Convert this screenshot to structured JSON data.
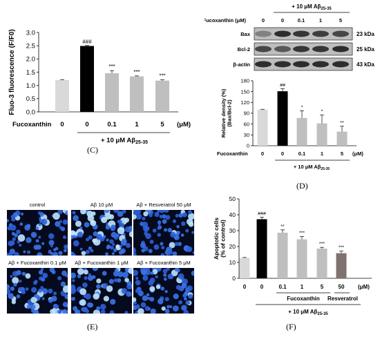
{
  "panels": {
    "C": {
      "label": "(C)",
      "chart_data": {
        "type": "bar",
        "ylabel": "Fluo-3 fluorescence (F/F0)",
        "ylim": [
          0,
          3.0
        ],
        "yticks": [
          "0.0",
          "0.5",
          "1.0",
          "1.5",
          "2.0",
          "2.5",
          "3.0"
        ],
        "categories": [
          "0",
          "0",
          "0.1",
          "1",
          "5"
        ],
        "values": [
          1.2,
          2.49,
          1.46,
          1.34,
          1.18
        ],
        "errors": [
          0.02,
          0.02,
          0.1,
          0.02,
          0.03
        ],
        "annotations": [
          "",
          "###",
          "***",
          "***",
          "***"
        ],
        "colors": [
          "#d9d9d9",
          "#000000",
          "#bfbfbf",
          "#bfbfbf",
          "#bfbfbf"
        ],
        "row_label": "Fucoxanthin",
        "unit": "(μM)",
        "treatment": {
          "prefix": "+ 10 μM Aβ",
          "sub": "25-35"
        }
      }
    },
    "D": {
      "label": "(D)",
      "blot": {
        "row_label": "Fucoxanthin (μM)",
        "columns": [
          "0",
          "0",
          "0.1",
          "1",
          "5"
        ],
        "treatment": {
          "prefix": "+ 10 μM Aβ",
          "sub": "25-35"
        },
        "bands": [
          {
            "name": "Bax",
            "size": "23 kDa"
          },
          {
            "name": "Bcl-2",
            "size": "25 kDa"
          },
          {
            "name": "β-actin",
            "size": "43 kDa"
          }
        ]
      },
      "chart_data": {
        "type": "bar",
        "ylabel_line1": "Relative density (%)",
        "ylabel_line2": "(Bax/Bcl-2)",
        "ylim": [
          0,
          180
        ],
        "yticks": [
          "0",
          "30",
          "60",
          "90",
          "120",
          "150",
          "180"
        ],
        "categories": [
          "0",
          "0",
          "0.1",
          "1",
          "5"
        ],
        "values": [
          100,
          151,
          77,
          62,
          39
        ],
        "errors": [
          1,
          7,
          20,
          23,
          15
        ],
        "annotations": [
          "",
          "##",
          "*",
          "*",
          "**"
        ],
        "colors": [
          "#d9d9d9",
          "#000000",
          "#bfbfbf",
          "#bfbfbf",
          "#bfbfbf"
        ],
        "row_label": "Fucoxanthin",
        "unit": "(μM)",
        "treatment": {
          "prefix": "+ 10 μM Aβ",
          "sub": "25-35"
        }
      }
    },
    "E": {
      "label": "(E)",
      "images": [
        {
          "caption": "control"
        },
        {
          "caption": "Aβ 10 μM"
        },
        {
          "caption": "Aβ + Resveratrol 50 μM"
        },
        {
          "caption": "Aβ + Fucoxanthin 0.1 μM"
        },
        {
          "caption": "Aβ + Fucoxanthin 1 μM"
        },
        {
          "caption": "Aβ + Fucoxanthin 5 μM"
        }
      ]
    },
    "F": {
      "label": "(F)",
      "chart_data": {
        "type": "bar",
        "ylabel_line1": "Apoptotic cells",
        "ylabel_line2": "(% of control)",
        "ylim": [
          0,
          50
        ],
        "yticks": [
          "0",
          "10",
          "20",
          "30",
          "40",
          "50"
        ],
        "categories": [
          "0",
          "0",
          "0.1",
          "1",
          "5",
          "50"
        ],
        "values": [
          12.8,
          37.2,
          28.7,
          24.5,
          18.7,
          15.8
        ],
        "errors": [
          0.3,
          1.3,
          1.8,
          1.8,
          0.8,
          1.3
        ],
        "annotations": [
          "",
          "###",
          "**",
          "***",
          "***",
          "***"
        ],
        "colors": [
          "#d9d9d9",
          "#000000",
          "#bfbfbf",
          "#bfbfbf",
          "#bfbfbf",
          "#7f7370"
        ],
        "group_labels": [
          "Fucoxanthin",
          "Resveratrol"
        ],
        "unit": "(μM)",
        "treatment": {
          "prefix": "+ 10 μM Aβ",
          "sub": "25-35"
        }
      }
    }
  }
}
